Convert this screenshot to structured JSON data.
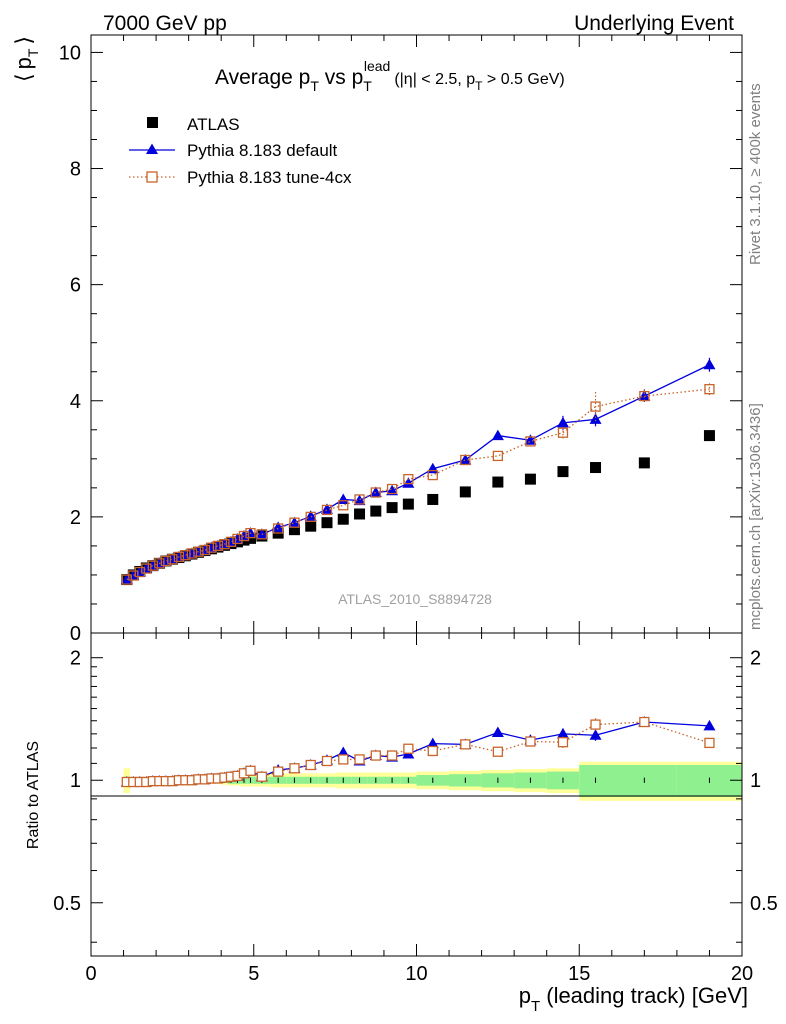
{
  "header": {
    "left": "7000 GeV pp",
    "right": "Underlying Event"
  },
  "side": {
    "rivet": "Rivet 3.1.10, ≥ 400k events",
    "mcplots": "mcplots.cern.ch [arXiv:1306.3436]"
  },
  "chart_data": [
    {
      "type": "scatter",
      "panel": "main",
      "title": "Average p_T vs p_T^lead (|η| < 2.5, p_T > 0.5 GeV)",
      "title_parts": {
        "main": "Average p",
        "sub1": "T",
        "mid": " vs p",
        "sup": "lead",
        "sub2": "T",
        "cut_a": "(|η| < 2.5, p",
        "cut_sub": "T",
        "cut_b": " > 0.5 GeV)"
      },
      "ylabel": "⟨ p_T ⟩",
      "ylabel_parts": {
        "open": "⟨",
        "p": "p",
        "sub": "T",
        "close": "⟩"
      },
      "watermark": "ATLAS_2010_S8894728",
      "xlim": [
        0,
        20
      ],
      "ylim": [
        0,
        10.3
      ],
      "yticks": [
        "0",
        "2",
        "4",
        "6",
        "8",
        "10"
      ],
      "ytick_values": [
        0,
        2,
        4,
        6,
        8,
        10
      ],
      "legend_position": "top-left",
      "series": [
        {
          "name": "ATLAS",
          "color": "#000000",
          "marker": "filled-square",
          "x": [
            1.1,
            1.3,
            1.5,
            1.7,
            1.9,
            2.1,
            2.3,
            2.5,
            2.7,
            2.9,
            3.1,
            3.3,
            3.5,
            3.7,
            3.9,
            4.1,
            4.3,
            4.5,
            4.7,
            4.9,
            5.25,
            5.75,
            6.25,
            6.75,
            7.25,
            7.75,
            8.25,
            8.75,
            9.25,
            9.75,
            10.5,
            11.5,
            12.5,
            13.5,
            14.5,
            15.5,
            17.0,
            19.0
          ],
          "y": [
            0.92,
            1.0,
            1.06,
            1.12,
            1.16,
            1.2,
            1.24,
            1.27,
            1.3,
            1.33,
            1.36,
            1.39,
            1.42,
            1.45,
            1.48,
            1.51,
            1.54,
            1.57,
            1.6,
            1.63,
            1.67,
            1.72,
            1.78,
            1.84,
            1.9,
            1.96,
            2.05,
            2.1,
            2.16,
            2.22,
            2.3,
            2.43,
            2.6,
            2.65,
            2.78,
            2.85,
            2.93,
            3.4
          ],
          "yerr": [
            0.01,
            0.01,
            0.01,
            0.01,
            0.01,
            0.01,
            0.01,
            0.01,
            0.01,
            0.01,
            0.01,
            0.01,
            0.01,
            0.01,
            0.01,
            0.01,
            0.01,
            0.01,
            0.01,
            0.01,
            0.01,
            0.01,
            0.01,
            0.01,
            0.01,
            0.01,
            0.02,
            0.02,
            0.02,
            0.02,
            0.02,
            0.03,
            0.03,
            0.03,
            0.04,
            0.04,
            0.05,
            0.06
          ]
        },
        {
          "name": "Pythia 8.183 default",
          "color": "#0000dd",
          "marker": "filled-triangle",
          "line": "solid",
          "x": [
            1.1,
            1.3,
            1.5,
            1.7,
            1.9,
            2.1,
            2.3,
            2.5,
            2.7,
            2.9,
            3.1,
            3.3,
            3.5,
            3.7,
            3.9,
            4.1,
            4.3,
            4.5,
            4.7,
            4.9,
            5.25,
            5.75,
            6.25,
            6.75,
            7.25,
            7.75,
            8.25,
            8.75,
            9.25,
            9.75,
            10.5,
            11.5,
            12.5,
            13.5,
            14.5,
            15.5,
            17.0,
            19.0
          ],
          "y": [
            0.92,
            0.99,
            1.05,
            1.11,
            1.16,
            1.2,
            1.24,
            1.27,
            1.31,
            1.34,
            1.37,
            1.4,
            1.43,
            1.47,
            1.5,
            1.53,
            1.57,
            1.62,
            1.67,
            1.72,
            1.7,
            1.82,
            1.9,
            2.01,
            2.13,
            2.3,
            2.28,
            2.42,
            2.45,
            2.58,
            2.83,
            2.98,
            3.4,
            3.32,
            3.62,
            3.68,
            4.08,
            4.62
          ],
          "yerr": [
            0.01,
            0.01,
            0.01,
            0.01,
            0.01,
            0.01,
            0.01,
            0.01,
            0.01,
            0.01,
            0.01,
            0.01,
            0.01,
            0.01,
            0.01,
            0.01,
            0.01,
            0.01,
            0.02,
            0.02,
            0.02,
            0.02,
            0.02,
            0.03,
            0.03,
            0.03,
            0.04,
            0.04,
            0.04,
            0.05,
            0.05,
            0.06,
            0.07,
            0.08,
            0.12,
            0.12,
            0.1,
            0.12
          ]
        },
        {
          "name": "Pythia 8.183 tune-4cx",
          "color": "#c8642a",
          "marker": "open-square",
          "line": "dotted",
          "x": [
            1.1,
            1.3,
            1.5,
            1.7,
            1.9,
            2.1,
            2.3,
            2.5,
            2.7,
            2.9,
            3.1,
            3.3,
            3.5,
            3.7,
            3.9,
            4.1,
            4.3,
            4.5,
            4.7,
            4.9,
            5.25,
            5.75,
            6.25,
            6.75,
            7.25,
            7.75,
            8.25,
            8.75,
            9.25,
            9.75,
            10.5,
            11.5,
            12.5,
            13.5,
            14.5,
            15.5,
            17.0,
            19.0
          ],
          "y": [
            0.92,
            0.99,
            1.05,
            1.11,
            1.16,
            1.2,
            1.24,
            1.27,
            1.31,
            1.34,
            1.37,
            1.4,
            1.43,
            1.47,
            1.5,
            1.53,
            1.57,
            1.62,
            1.67,
            1.72,
            1.7,
            1.8,
            1.9,
            2.0,
            2.12,
            2.2,
            2.3,
            2.42,
            2.48,
            2.65,
            2.72,
            2.98,
            3.05,
            3.3,
            3.45,
            3.9,
            4.08,
            4.2
          ],
          "yerr": [
            0.01,
            0.01,
            0.01,
            0.01,
            0.01,
            0.01,
            0.01,
            0.01,
            0.01,
            0.01,
            0.01,
            0.01,
            0.01,
            0.01,
            0.01,
            0.01,
            0.01,
            0.01,
            0.02,
            0.02,
            0.02,
            0.02,
            0.02,
            0.03,
            0.03,
            0.03,
            0.04,
            0.04,
            0.04,
            0.05,
            0.05,
            0.06,
            0.07,
            0.08,
            0.1,
            0.25,
            0.12,
            0.1
          ]
        }
      ]
    },
    {
      "type": "scatter",
      "panel": "ratio",
      "ylabel": "Ratio to ATLAS",
      "xlabel": "p_T (leading track) [GeV]",
      "xlabel_parts": {
        "p": "p",
        "sub": "T",
        "rest": " (leading track) [GeV]"
      },
      "xlim": [
        0,
        20
      ],
      "ylim": [
        0.37,
        2.3
      ],
      "xticks": [
        "0",
        "5",
        "10",
        "15",
        "20"
      ],
      "xtick_values": [
        0,
        5,
        10,
        15,
        20
      ],
      "yticks": [
        "0.5",
        "1",
        "2"
      ],
      "ytick_values": [
        0.5,
        1,
        2
      ],
      "bands": {
        "inner_color": "#8ef08e",
        "outer_color": "#ffff99",
        "edges": [
          1.0,
          1.2,
          1.4,
          1.6,
          1.8,
          2.0,
          2.2,
          2.4,
          2.6,
          2.8,
          3.0,
          3.2,
          3.4,
          3.6,
          3.8,
          4.0,
          4.2,
          4.4,
          4.6,
          4.8,
          5.0,
          5.5,
          6.0,
          6.5,
          7.0,
          7.5,
          8.0,
          8.5,
          9.0,
          9.5,
          10.0,
          11.0,
          12.0,
          13.0,
          14.0,
          15.0,
          18.0,
          20.0
        ],
        "inner": [
          0.02,
          0.015,
          0.015,
          0.015,
          0.015,
          0.015,
          0.015,
          0.015,
          0.015,
          0.015,
          0.015,
          0.015,
          0.015,
          0.015,
          0.015,
          0.015,
          0.02,
          0.02,
          0.02,
          0.02,
          0.02,
          0.02,
          0.02,
          0.02,
          0.02,
          0.02,
          0.02,
          0.02,
          0.02,
          0.02,
          0.03,
          0.035,
          0.04,
          0.045,
          0.05,
          0.09,
          0.09
        ],
        "outer": [
          0.07,
          0.02,
          0.02,
          0.02,
          0.02,
          0.02,
          0.02,
          0.02,
          0.02,
          0.02,
          0.02,
          0.02,
          0.02,
          0.02,
          0.02,
          0.025,
          0.03,
          0.03,
          0.035,
          0.035,
          0.035,
          0.04,
          0.04,
          0.04,
          0.04,
          0.045,
          0.045,
          0.045,
          0.045,
          0.045,
          0.05,
          0.055,
          0.06,
          0.065,
          0.07,
          0.11,
          0.11
        ]
      },
      "series": [
        {
          "name": "Pythia 8.183 default",
          "color": "#0000dd",
          "marker": "filled-triangle",
          "line": "solid",
          "x": [
            1.1,
            1.3,
            1.5,
            1.7,
            1.9,
            2.1,
            2.3,
            2.5,
            2.7,
            2.9,
            3.1,
            3.3,
            3.5,
            3.7,
            3.9,
            4.1,
            4.3,
            4.5,
            4.7,
            4.9,
            5.25,
            5.75,
            6.25,
            6.75,
            7.25,
            7.75,
            8.25,
            8.75,
            9.25,
            9.75,
            10.5,
            11.5,
            12.5,
            13.5,
            14.5,
            15.5,
            17.0,
            19.0
          ],
          "y": [
            0.99,
            0.99,
            0.99,
            0.99,
            0.995,
            0.995,
            0.995,
            0.995,
            1.0,
            1.0,
            1.0,
            1.005,
            1.005,
            1.01,
            1.01,
            1.015,
            1.02,
            1.025,
            1.04,
            1.055,
            1.02,
            1.06,
            1.07,
            1.09,
            1.12,
            1.17,
            1.115,
            1.15,
            1.14,
            1.16,
            1.23,
            1.225,
            1.31,
            1.255,
            1.3,
            1.29,
            1.39,
            1.36
          ],
          "yerr": [
            0.01,
            0.01,
            0.01,
            0.01,
            0.01,
            0.01,
            0.01,
            0.01,
            0.01,
            0.01,
            0.01,
            0.01,
            0.01,
            0.01,
            0.01,
            0.01,
            0.01,
            0.01,
            0.01,
            0.01,
            0.01,
            0.01,
            0.01,
            0.015,
            0.015,
            0.015,
            0.02,
            0.02,
            0.02,
            0.02,
            0.02,
            0.025,
            0.03,
            0.03,
            0.04,
            0.04,
            0.035,
            0.035
          ]
        },
        {
          "name": "Pythia 8.183 tune-4cx",
          "color": "#c8642a",
          "marker": "open-square",
          "line": "dotted",
          "x": [
            1.1,
            1.3,
            1.5,
            1.7,
            1.9,
            2.1,
            2.3,
            2.5,
            2.7,
            2.9,
            3.1,
            3.3,
            3.5,
            3.7,
            3.9,
            4.1,
            4.3,
            4.5,
            4.7,
            4.9,
            5.25,
            5.75,
            6.25,
            6.75,
            7.25,
            7.75,
            8.25,
            8.75,
            9.25,
            9.75,
            10.5,
            11.5,
            12.5,
            13.5,
            14.5,
            15.5,
            17.0,
            19.0
          ],
          "y": [
            0.99,
            0.99,
            0.99,
            0.99,
            0.995,
            0.995,
            0.995,
            0.995,
            1.0,
            1.0,
            1.0,
            1.005,
            1.005,
            1.01,
            1.01,
            1.015,
            1.02,
            1.025,
            1.04,
            1.055,
            1.02,
            1.05,
            1.07,
            1.09,
            1.115,
            1.125,
            1.125,
            1.15,
            1.15,
            1.195,
            1.18,
            1.225,
            1.175,
            1.245,
            1.24,
            1.37,
            1.39,
            1.235
          ],
          "yerr": [
            0.01,
            0.01,
            0.01,
            0.01,
            0.01,
            0.01,
            0.01,
            0.01,
            0.01,
            0.01,
            0.01,
            0.01,
            0.01,
            0.01,
            0.01,
            0.01,
            0.01,
            0.01,
            0.01,
            0.01,
            0.01,
            0.01,
            0.01,
            0.015,
            0.015,
            0.015,
            0.02,
            0.02,
            0.02,
            0.02,
            0.02,
            0.025,
            0.03,
            0.03,
            0.04,
            0.05,
            0.035,
            0.035
          ]
        }
      ]
    }
  ]
}
